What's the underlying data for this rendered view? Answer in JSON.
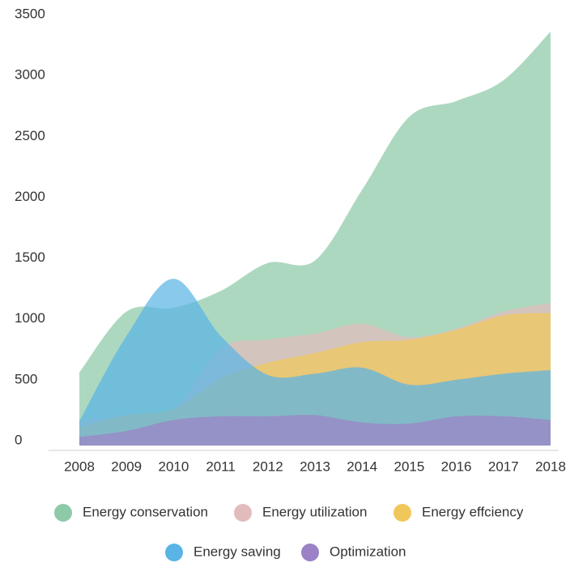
{
  "chart_data": {
    "type": "area",
    "categories": [
      "2008",
      "2009",
      "2010",
      "2011",
      "2012",
      "2013",
      "2014",
      "2015",
      "2016",
      "2017",
      "2018"
    ],
    "series": [
      {
        "name": "Energy conservation",
        "color": "#8ec9a8",
        "values": [
          600,
          1100,
          1130,
          1270,
          1500,
          1520,
          2100,
          2700,
          2830,
          3000,
          3400
        ]
      },
      {
        "name": "Energy utilization",
        "color": "#e2bcbc",
        "values": [
          200,
          250,
          300,
          800,
          870,
          920,
          1000,
          890,
          960,
          1100,
          1170
        ]
      },
      {
        "name": "Energy effciency",
        "color": "#f0c75a",
        "values": [
          150,
          250,
          300,
          550,
          680,
          760,
          850,
          870,
          950,
          1070,
          1090
        ]
      },
      {
        "name": "Energy saving",
        "color": "#5ab4e5",
        "values": [
          200,
          900,
          1370,
          900,
          580,
          590,
          640,
          500,
          540,
          590,
          620
        ]
      },
      {
        "name": "Optimization",
        "color": "#9b82c6",
        "values": [
          70,
          120,
          210,
          240,
          240,
          250,
          190,
          180,
          240,
          240,
          210
        ]
      }
    ],
    "ylim": [
      0,
      3500
    ],
    "yticks": [
      0,
      500,
      1000,
      1500,
      2000,
      2500,
      3000,
      3500
    ],
    "grid": false
  }
}
